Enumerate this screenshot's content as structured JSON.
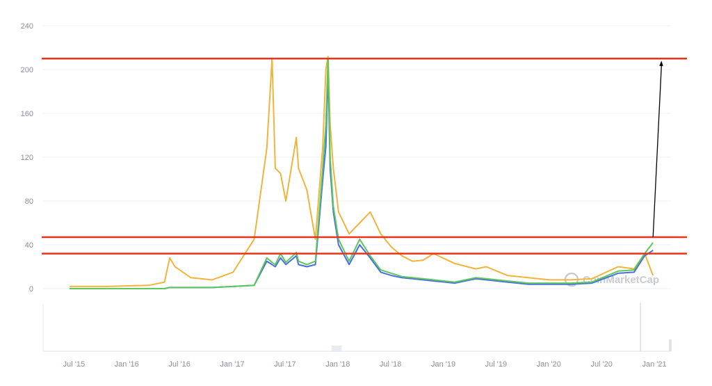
{
  "chart_data": {
    "type": "line",
    "title": "",
    "xlabel": "",
    "ylabel": "",
    "ylim": [
      0,
      240
    ],
    "y_ticks": [
      "0",
      "40",
      "80",
      "120",
      "160",
      "200",
      "240"
    ],
    "x_ticks": [
      "Jul '15",
      "Jan '16",
      "Jul '16",
      "Jan '17",
      "Jul '17",
      "Jan '18",
      "Jul '18",
      "Jan '19",
      "Jul '19",
      "Jan '20",
      "Jul '20",
      "Jan '21"
    ],
    "grid": true,
    "watermark": "CoinMarketCap",
    "series_colors": [
      "#f0b43c",
      "#4a6ee0",
      "#5cc75c"
    ],
    "x": [
      2015.55,
      2015.9,
      2016.3,
      2016.45,
      2016.5,
      2016.55,
      2016.7,
      2016.9,
      2017.1,
      2017.3,
      2017.42,
      2017.47,
      2017.5,
      2017.55,
      2017.6,
      2017.7,
      2017.72,
      2017.8,
      2017.88,
      2017.95,
      2017.98,
      2018.0,
      2018.02,
      2018.05,
      2018.1,
      2018.2,
      2018.3,
      2018.4,
      2018.5,
      2018.6,
      2018.7,
      2018.8,
      2018.9,
      2019.0,
      2019.2,
      2019.4,
      2019.5,
      2019.7,
      2019.9,
      2020.1,
      2020.3,
      2020.5,
      2020.75,
      2020.9,
      2021.0,
      2021.08
    ],
    "series": [
      {
        "values": [
          2,
          2,
          3,
          6,
          28,
          20,
          10,
          8,
          15,
          45,
          128,
          210,
          110,
          105,
          80,
          138,
          110,
          90,
          45,
          130,
          200,
          212,
          150,
          110,
          70,
          50,
          60,
          70,
          50,
          38,
          30,
          25,
          26,
          32,
          23,
          18,
          20,
          12,
          10,
          8,
          8,
          9,
          20,
          18,
          32,
          12
        ]
      },
      {
        "values": [
          0,
          0,
          0,
          0,
          1,
          1,
          1,
          1,
          2,
          3,
          25,
          22,
          20,
          28,
          22,
          30,
          22,
          20,
          22,
          100,
          130,
          200,
          110,
          70,
          40,
          22,
          40,
          28,
          15,
          12,
          10,
          9,
          8,
          7,
          5,
          9,
          8,
          6,
          4,
          4,
          4,
          5,
          14,
          15,
          30,
          35
        ]
      },
      {
        "values": [
          0,
          0,
          0,
          0,
          1,
          1,
          1,
          1,
          2,
          3,
          28,
          24,
          22,
          32,
          24,
          33,
          25,
          22,
          25,
          110,
          150,
          210,
          120,
          75,
          45,
          25,
          45,
          30,
          17,
          14,
          11,
          10,
          9,
          8,
          6,
          10,
          9,
          7,
          5,
          5,
          5,
          6,
          16,
          17,
          32,
          42
        ]
      }
    ],
    "annotations": {
      "hlines": [
        210,
        47,
        32
      ],
      "arrow": {
        "from": [
          2021.08,
          47
        ],
        "to": [
          2021.16,
          208
        ]
      }
    }
  }
}
